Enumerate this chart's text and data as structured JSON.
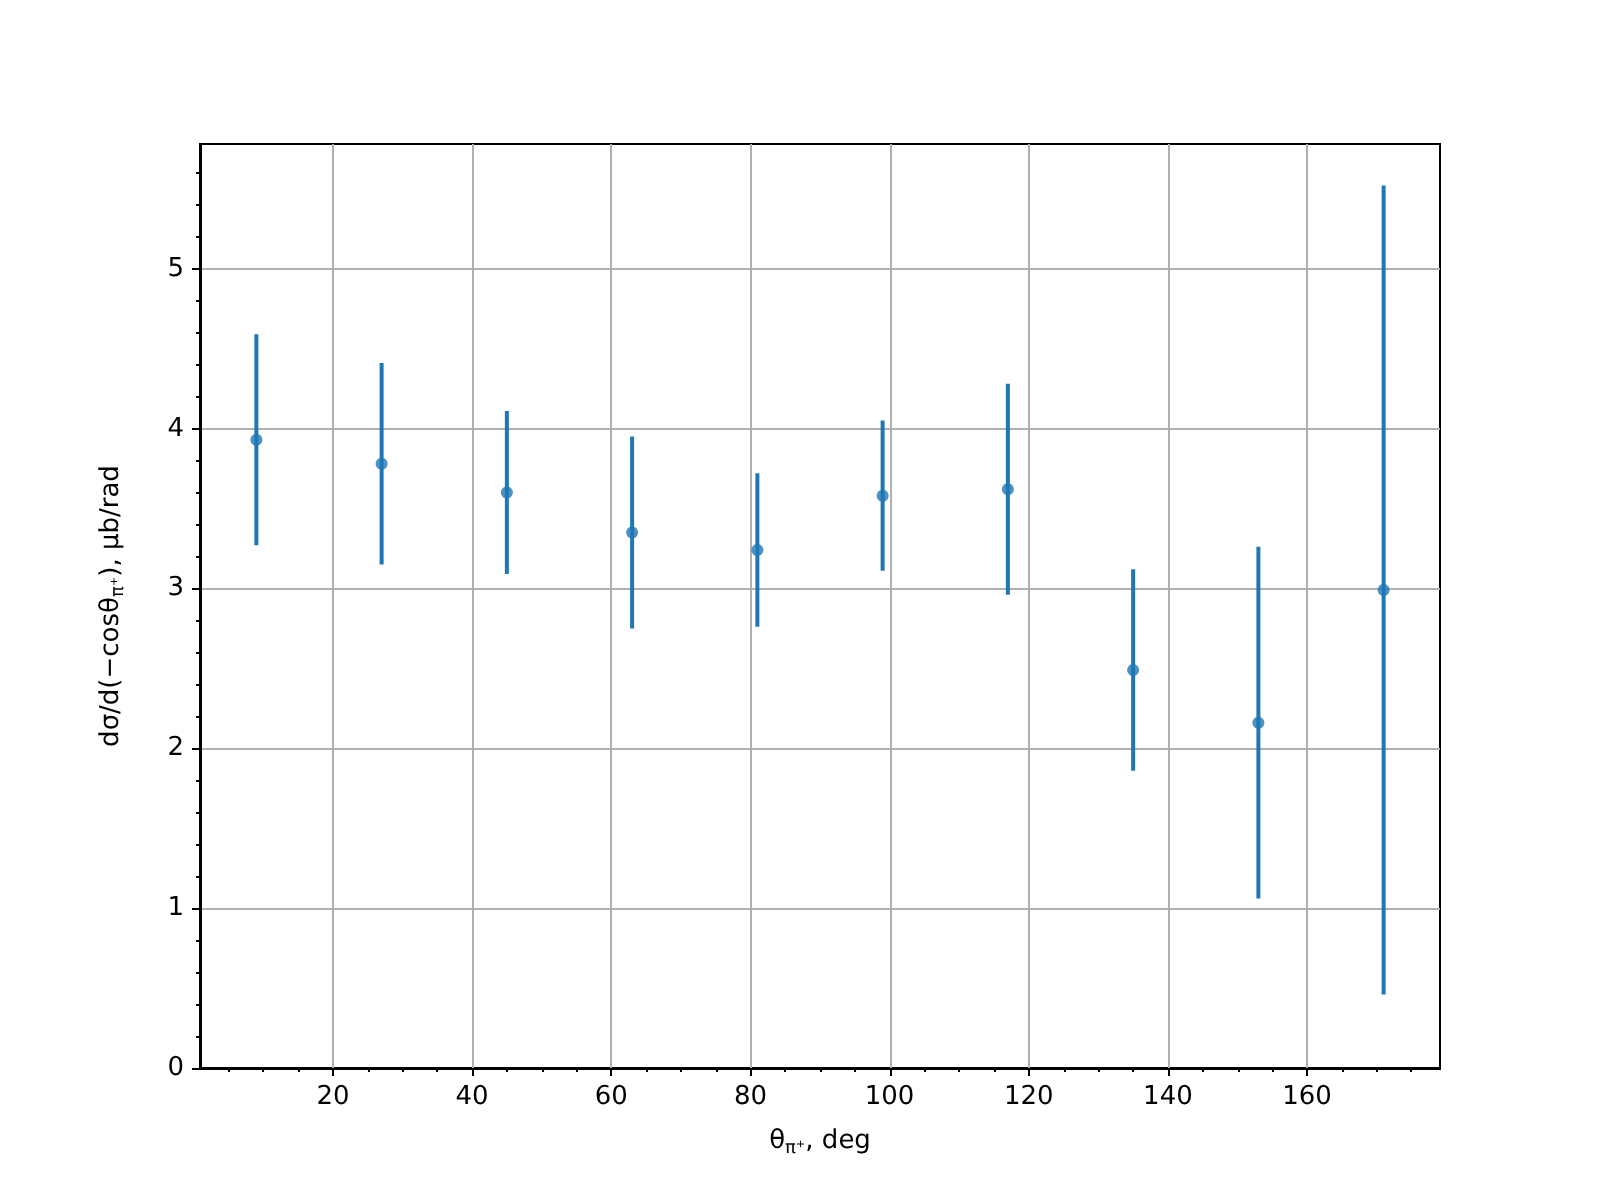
{
  "chart_data": {
    "type": "scatter",
    "xlabel": "θ$_{π⁺}$, deg",
    "ylabel": "dσ/d(−cosθ$_{π⁺}$), μb/rad",
    "x": [
      9,
      27,
      45,
      63,
      81,
      99,
      117,
      135,
      153,
      171
    ],
    "series": [
      {
        "color": "#1f77b4",
        "values": [
          3.93,
          3.78,
          3.6,
          3.35,
          3.24,
          3.58,
          3.62,
          2.49,
          2.16,
          2.99
        ],
        "errors": [
          0.66,
          0.63,
          0.51,
          0.6,
          0.48,
          0.47,
          0.66,
          0.63,
          1.1,
          2.53
        ]
      }
    ],
    "xlim": [
      0.9,
      179.1
    ],
    "xticks": [
      {
        "value": 5,
        "label": null
      },
      {
        "value": 10,
        "label": null
      },
      {
        "value": 15,
        "label": null
      },
      20,
      {
        "value": 25,
        "label": null
      },
      {
        "value": 30,
        "label": null
      },
      {
        "value": 35,
        "label": null
      },
      40,
      {
        "value": 45,
        "label": null
      },
      {
        "value": 50,
        "label": null
      },
      {
        "value": 55,
        "label": null
      },
      60,
      {
        "value": 65,
        "label": null
      },
      {
        "value": 70,
        "label": null
      },
      {
        "value": 75,
        "label": null
      },
      80,
      {
        "value": 85,
        "label": null
      },
      {
        "value": 90,
        "label": null
      },
      {
        "value": 95,
        "label": null
      },
      100,
      {
        "value": 105,
        "label": null
      },
      {
        "value": 110,
        "label": null
      },
      {
        "value": 115,
        "label": null
      },
      120,
      {
        "value": 125,
        "label": null
      },
      {
        "value": 130,
        "label": null
      },
      {
        "value": 135,
        "label": null
      },
      140,
      {
        "value": 145,
        "label": null
      },
      {
        "value": 150,
        "label": null
      },
      {
        "value": 155,
        "label": null
      },
      160,
      {
        "value": 165,
        "label": null
      },
      {
        "value": 170,
        "label": null
      },
      {
        "value": 175,
        "label": null
      }
    ],
    "ylim": [
      0,
      5.78
    ],
    "yticks": [
      0,
      {
        "value": 0.2,
        "label": null
      },
      {
        "value": 0.4,
        "label": null
      },
      {
        "value": 0.6,
        "label": null
      },
      {
        "value": 0.8,
        "label": null
      },
      1,
      {
        "value": 1.2,
        "label": null
      },
      {
        "value": 1.4,
        "label": null
      },
      {
        "value": 1.6,
        "label": null
      },
      {
        "value": 1.8,
        "label": null
      },
      2,
      {
        "value": 2.2,
        "label": null
      },
      {
        "value": 2.4,
        "label": null
      },
      {
        "value": 2.6,
        "label": null
      },
      {
        "value": 2.8,
        "label": null
      },
      3,
      {
        "value": 3.2,
        "label": null
      },
      {
        "value": 3.4,
        "label": null
      },
      {
        "value": 3.6,
        "label": null
      },
      {
        "value": 3.8,
        "label": null
      },
      4,
      {
        "value": 4.2,
        "label": null
      },
      {
        "value": 4.4,
        "label": null
      },
      {
        "value": 4.6,
        "label": null
      },
      {
        "value": 4.8,
        "label": null
      },
      5,
      {
        "value": 5.2,
        "label": null
      },
      {
        "value": 5.4,
        "label": null
      },
      {
        "value": 5.6,
        "label": null
      }
    ],
    "grid": true,
    "marker": "circle"
  }
}
